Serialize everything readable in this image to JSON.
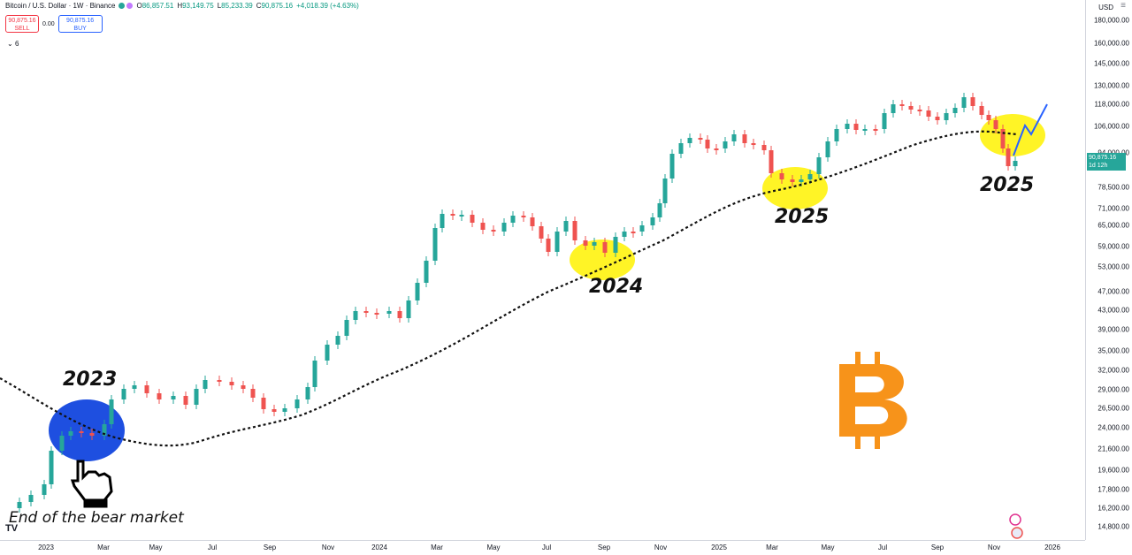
{
  "header": {
    "symbol": "Bitcoin / U.S. Dollar · 1W · Binance",
    "o_label": "O",
    "o_val": "86,857.51",
    "h_label": "H",
    "h_val": "93,149.75",
    "l_label": "L",
    "l_val": "85,233.39",
    "c_label": "C",
    "c_val": "90,875.16",
    "change": "+4,018.39 (+4.63%)"
  },
  "trade": {
    "sell_price": "90,875.16",
    "sell_label": "SELL",
    "spread": "0.00",
    "buy_price": "90,875.16",
    "buy_label": "BUY"
  },
  "indicator_count": "6",
  "currency": "USD",
  "price_tag": {
    "price": "90,875.16",
    "countdown": "1d 12h"
  },
  "price_axis": [
    "180,000.00",
    "160,000.00",
    "145,000.00",
    "130,000.00",
    "118,000.00",
    "106,000.00",
    "94,000.00",
    "78,500.00",
    "71,000.00",
    "65,000.00",
    "59,000.00",
    "53,000.00",
    "47,000.00",
    "43,000.00",
    "39,000.00",
    "35,000.00",
    "32,000.00",
    "29,000.00",
    "26,500.00",
    "24,000.00",
    "21,600.00",
    "19,600.00",
    "17,800.00",
    "16,200.00",
    "14,800.00"
  ],
  "time_axis": [
    "2023",
    "Mar",
    "May",
    "Jul",
    "Sep",
    "Nov",
    "2024",
    "Mar",
    "May",
    "Jul",
    "Sep",
    "Nov",
    "2025",
    "Mar",
    "May",
    "Jul",
    "Sep",
    "Nov",
    "2026"
  ],
  "annotations": {
    "a2023": "2023",
    "a2024": "2024",
    "a2025_mid": "2025",
    "a2025_right": "2025",
    "bottom_msg": "End of the bear market"
  },
  "logo_text": "TV",
  "colors": {
    "up": "#26a69a",
    "down": "#ef5350",
    "highlight_yellow": "#fff200",
    "highlight_blue": "#1e4fe0",
    "bitcoin_orange": "#f7931a",
    "projection": "#2962ff"
  }
}
